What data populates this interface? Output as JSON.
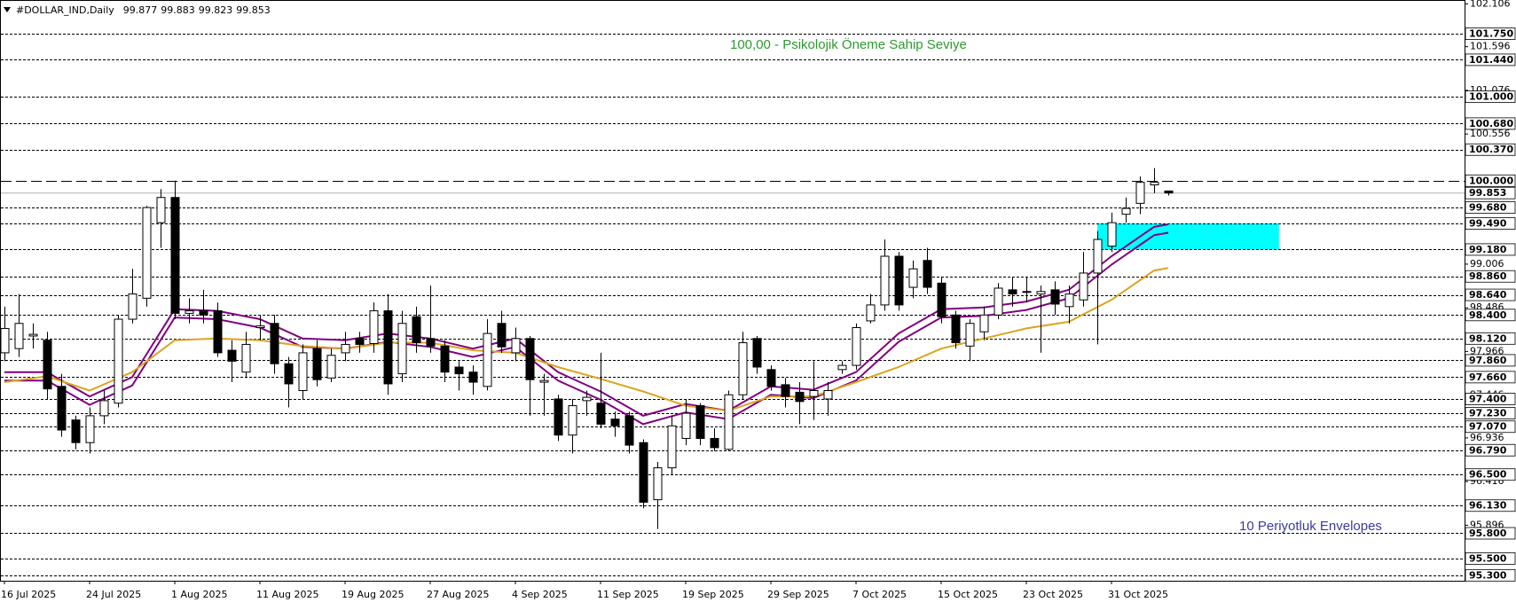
{
  "chart_data": {
    "type": "candlestick",
    "title": "#DOLLAR_IND,Daily",
    "categories": [
      "16 Jul 2025",
      null,
      null,
      null,
      null,
      null,
      "24 Jul 2025",
      null,
      null,
      null,
      null,
      null,
      "1 Aug 2025",
      null,
      null,
      null,
      null,
      null,
      "11 Aug 2025",
      null,
      null,
      null,
      null,
      null,
      "19 Aug 2025",
      null,
      null,
      null,
      null,
      null,
      "27 Aug 2025",
      null,
      null,
      null,
      null,
      null,
      "4 Sep 2025",
      null,
      null,
      null,
      null,
      null,
      "11 Sep 2025",
      null,
      null,
      null,
      null,
      null,
      "19 Sep 2025",
      null,
      null,
      null,
      null,
      null,
      "29 Sep 2025",
      null,
      null,
      null,
      null,
      null,
      "7 Oct 2025",
      null,
      null,
      null,
      null,
      null,
      "15 Oct 2025",
      null,
      null,
      null,
      null,
      null,
      "23 Oct 2025",
      null,
      null,
      null,
      null,
      null,
      "31 Oct 2025",
      null,
      null,
      null,
      null
    ],
    "ohlc": [
      [
        97.95,
        98.5,
        97.85,
        98.24
      ],
      [
        98.0,
        98.65,
        97.9,
        98.3
      ],
      [
        98.15,
        98.3,
        98.0,
        98.17
      ],
      [
        98.1,
        98.2,
        97.4,
        97.52
      ],
      [
        97.55,
        97.7,
        96.95,
        97.03
      ],
      [
        97.15,
        97.2,
        96.8,
        96.88
      ],
      [
        96.88,
        97.3,
        96.75,
        97.2
      ],
      [
        97.2,
        97.5,
        97.1,
        97.38
      ],
      [
        97.35,
        98.4,
        97.3,
        98.35
      ],
      [
        98.35,
        98.95,
        98.3,
        98.65
      ],
      [
        98.6,
        99.7,
        98.5,
        99.68
      ],
      [
        99.5,
        99.9,
        99.2,
        99.8
      ],
      [
        99.8,
        100.0,
        98.35,
        98.42
      ],
      [
        98.42,
        98.6,
        98.3,
        98.45
      ],
      [
        98.45,
        98.7,
        98.3,
        98.4
      ],
      [
        98.45,
        98.55,
        97.9,
        97.95
      ],
      [
        97.98,
        98.1,
        97.6,
        97.85
      ],
      [
        97.72,
        98.2,
        97.65,
        98.05
      ],
      [
        98.25,
        98.4,
        98.1,
        98.27
      ],
      [
        98.3,
        98.4,
        97.7,
        97.82
      ],
      [
        97.82,
        97.9,
        97.3,
        97.58
      ],
      [
        97.5,
        98.05,
        97.4,
        97.95
      ],
      [
        98.0,
        98.1,
        97.55,
        97.63
      ],
      [
        97.65,
        98.0,
        97.6,
        97.92
      ],
      [
        97.95,
        98.2,
        97.85,
        98.05
      ],
      [
        98.12,
        98.2,
        97.95,
        98.05
      ],
      [
        98.06,
        98.55,
        97.95,
        98.45
      ],
      [
        98.45,
        98.65,
        97.45,
        97.58
      ],
      [
        97.7,
        98.45,
        97.6,
        98.3
      ],
      [
        98.38,
        98.5,
        97.95,
        98.07
      ],
      [
        98.12,
        98.75,
        97.95,
        98.03
      ],
      [
        98.03,
        98.1,
        97.6,
        97.72
      ],
      [
        97.78,
        97.85,
        97.5,
        97.7
      ],
      [
        97.72,
        97.8,
        97.45,
        97.6
      ],
      [
        97.55,
        98.35,
        97.5,
        98.18
      ],
      [
        98.3,
        98.45,
        97.95,
        98.02
      ],
      [
        97.95,
        98.25,
        97.85,
        98.12
      ],
      [
        98.12,
        98.15,
        97.2,
        97.63
      ],
      [
        97.6,
        97.7,
        97.2,
        97.62
      ],
      [
        97.4,
        97.45,
        96.9,
        96.97
      ],
      [
        96.97,
        97.4,
        96.75,
        97.32
      ],
      [
        97.38,
        97.5,
        97.2,
        97.42
      ],
      [
        97.35,
        97.95,
        97.05,
        97.1
      ],
      [
        97.16,
        97.25,
        96.95,
        97.08
      ],
      [
        97.2,
        97.25,
        96.75,
        96.85
      ],
      [
        96.88,
        96.92,
        96.1,
        96.17
      ],
      [
        96.2,
        96.65,
        95.85,
        96.58
      ],
      [
        96.58,
        97.2,
        96.5,
        97.08
      ],
      [
        96.93,
        97.4,
        96.85,
        97.23
      ],
      [
        97.32,
        97.35,
        96.85,
        96.93
      ],
      [
        96.93,
        97.05,
        96.78,
        96.82
      ],
      [
        96.8,
        97.5,
        96.78,
        97.45
      ],
      [
        97.45,
        98.2,
        97.4,
        98.07
      ],
      [
        98.12,
        98.15,
        97.7,
        97.78
      ],
      [
        97.75,
        97.8,
        97.5,
        97.55
      ],
      [
        97.57,
        97.65,
        97.3,
        97.43
      ],
      [
        97.48,
        97.6,
        97.1,
        97.37
      ],
      [
        97.43,
        97.85,
        97.15,
        97.5
      ],
      [
        97.4,
        97.6,
        97.2,
        97.5
      ],
      [
        97.75,
        97.85,
        97.7,
        97.8
      ],
      [
        97.8,
        98.3,
        97.75,
        98.25
      ],
      [
        98.33,
        98.65,
        98.3,
        98.52
      ],
      [
        98.52,
        99.3,
        98.45,
        99.1
      ],
      [
        99.1,
        99.15,
        98.45,
        98.52
      ],
      [
        98.73,
        99.05,
        98.6,
        98.95
      ],
      [
        99.05,
        99.2,
        98.65,
        98.73
      ],
      [
        98.78,
        98.85,
        98.3,
        98.38
      ],
      [
        98.4,
        98.45,
        98.0,
        98.07
      ],
      [
        98.03,
        98.35,
        97.85,
        98.3
      ],
      [
        98.2,
        98.5,
        98.1,
        98.4
      ],
      [
        98.4,
        98.78,
        98.35,
        98.72
      ],
      [
        98.7,
        98.85,
        98.5,
        98.65
      ],
      [
        98.68,
        98.85,
        98.55,
        98.68
      ],
      [
        98.65,
        98.75,
        97.95,
        98.68
      ],
      [
        98.7,
        98.8,
        98.4,
        98.53
      ],
      [
        98.5,
        98.75,
        98.3,
        98.65
      ],
      [
        98.58,
        99.15,
        98.5,
        98.9
      ],
      [
        98.9,
        99.4,
        98.05,
        99.3
      ],
      [
        99.22,
        99.62,
        99.15,
        99.5
      ],
      [
        99.6,
        99.8,
        99.5,
        99.67
      ],
      [
        99.73,
        100.05,
        99.6,
        99.98
      ],
      [
        99.95,
        100.15,
        99.85,
        99.98
      ],
      [
        99.877,
        99.883,
        99.823,
        99.853
      ]
    ],
    "up_color": "#ffffff",
    "down_color": "#000000",
    "lines": [
      {
        "color": "#800080",
        "x": [
          0,
          3,
          6,
          9,
          12,
          15,
          18,
          21,
          24,
          27,
          30,
          33,
          36,
          39,
          42,
          45,
          48,
          51,
          54,
          57,
          60,
          63,
          66,
          69,
          72,
          75,
          78,
          81,
          82
        ],
        "values": [
          97.72,
          97.72,
          97.43,
          97.66,
          98.47,
          98.45,
          98.35,
          98.12,
          98.1,
          98.18,
          98.12,
          98.0,
          98.12,
          97.72,
          97.49,
          97.2,
          97.34,
          97.26,
          97.55,
          97.51,
          97.72,
          98.18,
          98.47,
          98.49,
          98.56,
          98.7,
          99.1,
          99.45,
          99.48
        ]
      },
      {
        "color": "#800080",
        "x": [
          0,
          3,
          6,
          9,
          12,
          15,
          18,
          21,
          24,
          27,
          30,
          33,
          36,
          39,
          42,
          45,
          48,
          51,
          54,
          57,
          60,
          63,
          66,
          69,
          72,
          75,
          78,
          81,
          82
        ],
        "values": [
          97.62,
          97.62,
          97.33,
          97.56,
          98.37,
          98.35,
          98.25,
          98.02,
          98.0,
          98.08,
          98.02,
          97.9,
          98.02,
          97.62,
          97.39,
          97.1,
          97.24,
          97.16,
          97.45,
          97.41,
          97.62,
          98.08,
          98.37,
          98.39,
          98.46,
          98.6,
          99.0,
          99.35,
          99.38
        ]
      },
      {
        "color": "#daa520",
        "x": [
          0,
          3,
          6,
          9,
          12,
          15,
          18,
          21,
          24,
          27,
          30,
          33,
          36,
          39,
          42,
          45,
          48,
          51,
          54,
          57,
          60,
          63,
          66,
          69,
          72,
          75,
          78,
          81,
          82
        ],
        "values": [
          97.6,
          97.67,
          97.5,
          97.72,
          98.1,
          98.12,
          98.1,
          98.03,
          98.0,
          98.07,
          98.07,
          97.98,
          97.95,
          97.78,
          97.64,
          97.49,
          97.32,
          97.26,
          97.43,
          97.43,
          97.6,
          97.78,
          98.0,
          98.12,
          98.24,
          98.32,
          98.58,
          98.93,
          98.96
        ]
      }
    ],
    "zone": {
      "color": "#00ffff",
      "x": [
        77,
        89.8
      ],
      "y": [
        99.18,
        99.49
      ]
    },
    "levels": [
      {
        "value": 101.75,
        "label": "101.750"
      },
      {
        "value": 101.44,
        "label": "101.440"
      },
      {
        "value": 101,
        "label": "101.000"
      },
      {
        "value": 100.68,
        "label": "100.680"
      },
      {
        "value": 100.37,
        "label": "100.370"
      },
      {
        "value": 100,
        "label": "100.000",
        "dash": "long"
      },
      {
        "value": 99.68,
        "label": "99.680"
      },
      {
        "value": 99.49,
        "label": "99.490"
      },
      {
        "value": 99.18,
        "label": "99.180"
      },
      {
        "value": 98.86,
        "label": "98.860"
      },
      {
        "value": 98.64,
        "label": "98.640"
      },
      {
        "value": 98.4,
        "label": "98.400"
      },
      {
        "value": 98.12,
        "label": "98.120"
      },
      {
        "value": 97.86,
        "label": "97.860"
      },
      {
        "value": 97.66,
        "label": "97.660"
      },
      {
        "value": 97.4,
        "label": "97.400"
      },
      {
        "value": 97.23,
        "label": "97.230"
      },
      {
        "value": 97.07,
        "label": "97.070"
      },
      {
        "value": 96.79,
        "label": "96.790"
      },
      {
        "value": 96.5,
        "label": "96.500"
      },
      {
        "value": 96.13,
        "label": "96.130"
      },
      {
        "value": 95.8,
        "label": "95.800"
      },
      {
        "value": 95.5,
        "label": "95.500"
      },
      {
        "value": 95.3,
        "label": "95.300"
      }
    ],
    "ylim": [
      95.235,
      102.152
    ],
    "yticks": [
      102.106,
      101.596,
      101.076,
      100.556,
      99.006,
      98.486,
      97.966,
      97.446,
      96.936,
      96.416,
      95.896
    ],
    "annotations": [
      {
        "text": "100,00 -  Psikolojik Öneme Sahip Seviye",
        "color": "#2e9a2e"
      },
      {
        "text": "10 Periyotluk Envelopes",
        "color": "#3b3b9c"
      }
    ]
  }
}
